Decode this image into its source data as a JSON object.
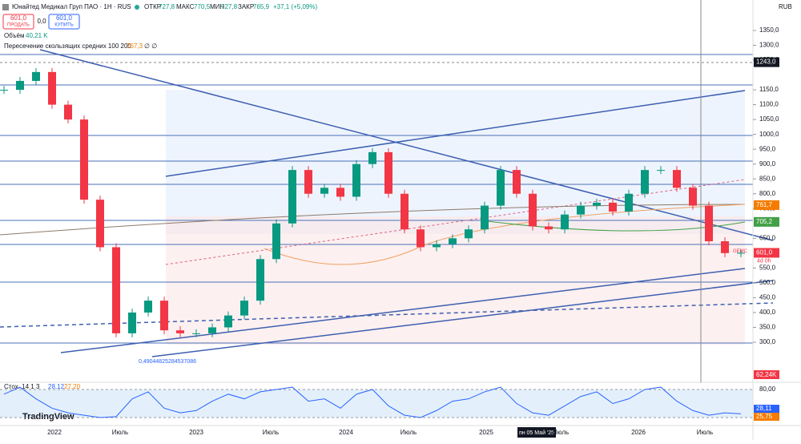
{
  "header": {
    "symbol": "Юнайтед Медикал Груп ПАО · 1Н · RUS",
    "open_label": "ОТКР",
    "open": "727,8",
    "high_label": "МАКС",
    "high": "770,5",
    "low_label": "МИН",
    "low": "727,8",
    "close_label": "ЗАКР",
    "close": "765,9",
    "change": "+37,1 (+5,09%)",
    "currency": "RUB"
  },
  "trade": {
    "sell_price": "601,0",
    "sell": "ПРОДАТЬ",
    "spread": "0,0",
    "buy_price": "601,0",
    "buy": "КУПИТЬ"
  },
  "legend": {
    "volume": "Объём",
    "volume_value": "40,21 K",
    "ma_cross": "Пересечение скользящих средних 100 200",
    "ma_value": "767,3",
    "ma_extra": "∅ ∅",
    "fib": "0,49044825284537086"
  },
  "price_axis": {
    "ticks": [
      {
        "value": 1350,
        "label": "1350,0"
      },
      {
        "value": 1300,
        "label": "1300,0"
      },
      {
        "value": 1250,
        "label": "1250,0"
      },
      {
        "value": 1150,
        "label": "1150,0"
      },
      {
        "value": 1100,
        "label": "1100,0"
      },
      {
        "value": 1050,
        "label": "1050,0"
      },
      {
        "value": 1000,
        "label": "1000,0"
      },
      {
        "value": 950,
        "label": "950,0"
      },
      {
        "value": 900,
        "label": "900,0"
      },
      {
        "value": 850,
        "label": "850,0"
      },
      {
        "value": 800,
        "label": "800,0"
      },
      {
        "value": 750,
        "label": "750,0"
      },
      {
        "value": 650,
        "label": "650,0"
      },
      {
        "value": 550,
        "label": "550,0"
      },
      {
        "value": 500,
        "label": "500,0"
      },
      {
        "value": 450,
        "label": "450,0"
      },
      {
        "value": 400,
        "label": "400,0"
      },
      {
        "value": 350,
        "label": "350,0"
      },
      {
        "value": 300,
        "label": "300,0"
      }
    ],
    "markers": [
      {
        "value": 1243,
        "label": "1243,0",
        "color": "#131722"
      },
      {
        "value": 761.7,
        "label": "761,7",
        "color": "#f57c00"
      },
      {
        "value": 705.2,
        "label": "705,2",
        "color": "#43a047"
      },
      {
        "value": 601,
        "label": "601,0",
        "color": "#f23645"
      }
    ],
    "symbol_tag": "GEMC",
    "countdown": "4d 0h",
    "volume_tag": "62,24K"
  },
  "closes": [
    1150,
    1180,
    1210,
    1100,
    1050,
    780,
    620,
    330,
    400,
    440,
    340,
    330,
    330,
    350,
    390,
    440,
    580,
    700,
    880,
    800,
    820,
    790,
    900,
    940,
    800,
    680,
    620,
    630,
    650,
    680,
    760,
    880,
    800,
    690,
    680,
    730,
    760,
    770,
    740,
    800,
    880,
    880,
    820,
    760,
    640,
    600,
    601
  ],
  "stoch": {
    "label": "Стох. 14 1 3",
    "k": "28,12",
    "d": "27,20",
    "ticks": [
      {
        "value": 80,
        "label": "80,00"
      },
      {
        "value": 20,
        "label": "20,00"
      }
    ],
    "k_tag": "28,11",
    "d_tag": "25,75",
    "values": [
      70,
      85,
      60,
      40,
      30,
      25,
      20,
      22,
      60,
      75,
      40,
      30,
      35,
      55,
      70,
      60,
      75,
      80,
      85,
      55,
      60,
      40,
      70,
      80,
      45,
      25,
      20,
      35,
      55,
      60,
      75,
      85,
      50,
      30,
      25,
      45,
      65,
      75,
      50,
      60,
      80,
      85,
      55,
      35,
      25,
      30,
      28
    ]
  },
  "time_axis": [
    "2022",
    "Июль",
    "2023",
    "Июль",
    "2024",
    "Июль",
    "2025",
    "пн 05 Май '25",
    "Июль",
    "2026",
    "Июль"
  ],
  "brand": "TradingView"
}
